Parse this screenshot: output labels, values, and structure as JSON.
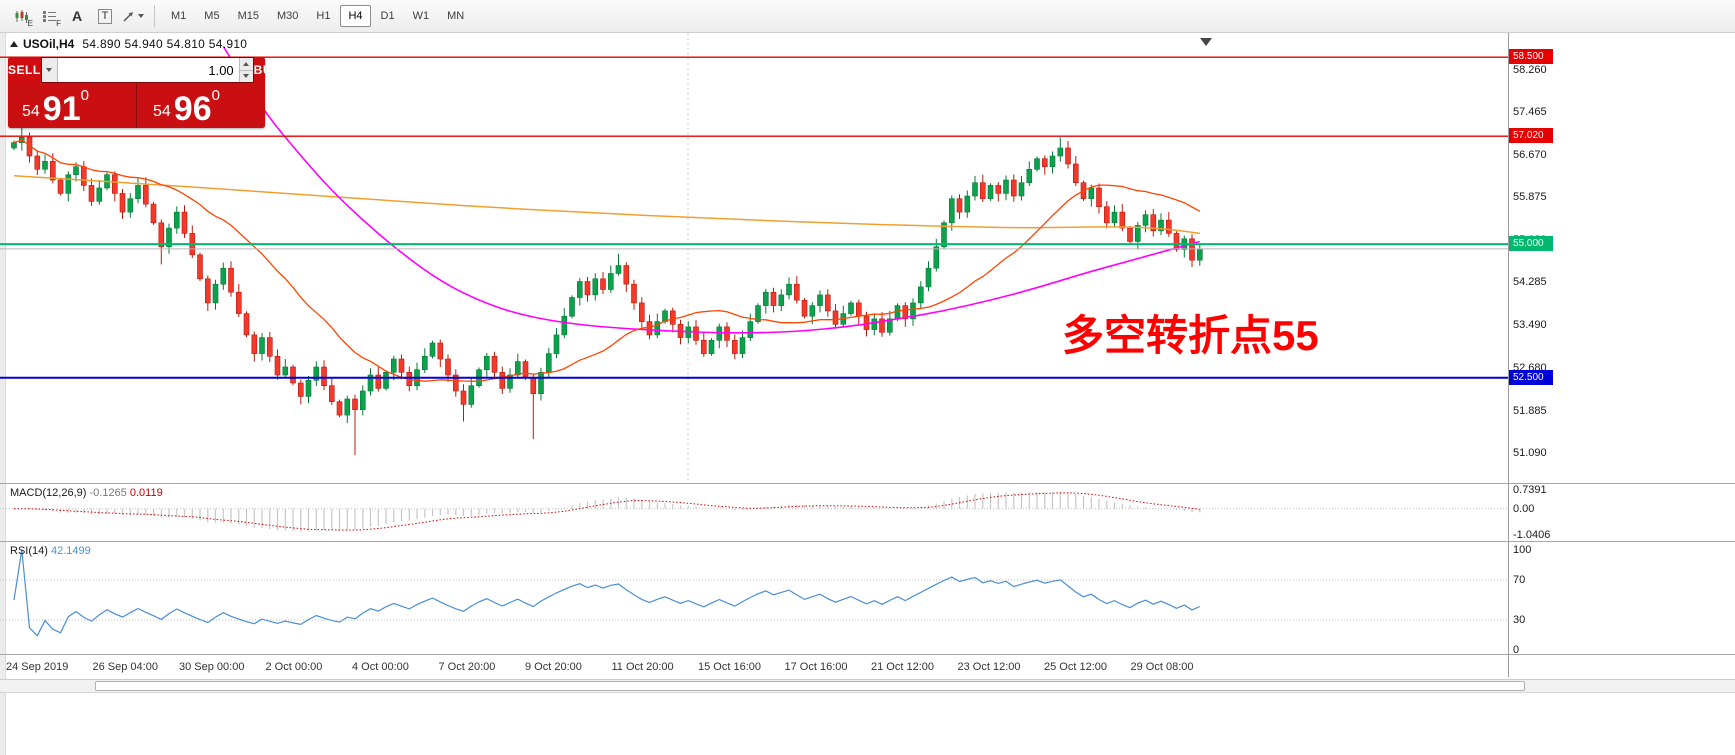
{
  "toolbar": {
    "icon_sub_e": "E",
    "icon_sub_f": "F",
    "text_tool_label": "A",
    "template_tool_label": "T",
    "timeframes": [
      {
        "label": "M1",
        "active": false
      },
      {
        "label": "M5",
        "active": false
      },
      {
        "label": "M15",
        "active": false
      },
      {
        "label": "M30",
        "active": false
      },
      {
        "label": "H1",
        "active": false
      },
      {
        "label": "H4",
        "active": true
      },
      {
        "label": "D1",
        "active": false
      },
      {
        "label": "W1",
        "active": false
      },
      {
        "label": "MN",
        "active": false
      }
    ]
  },
  "header": {
    "symbol": "USOil,H4",
    "ohlc": "54.890 54.940 54.810 54.910"
  },
  "trade_panel": {
    "sell_label": "SELL",
    "buy_label": "BUY",
    "volume": "1.00",
    "sell_small": "54",
    "sell_big": "91",
    "sell_sup": "0",
    "buy_small": "54",
    "buy_big": "96",
    "buy_sup": "0"
  },
  "annotation": {
    "text": "多空转折点55",
    "color": "#ff0000"
  },
  "macd": {
    "name": "MACD(12,26,9)",
    "value_main": "-0.1265",
    "value_signal": "0.0119"
  },
  "rsi": {
    "name": "RSI(14)",
    "value": "42.1499"
  },
  "chart_data": {
    "type": "candlestick",
    "symbol": "USOil",
    "timeframe": "H4",
    "last_quote": {
      "open": 54.89,
      "high": 54.94,
      "low": 54.81,
      "close": 54.91
    },
    "bid_price": 54.91,
    "x_labels": [
      "24 Sep 2019",
      "26 Sep 04:00",
      "30 Sep 00:00",
      "2 Oct 00:00",
      "4 Oct 00:00",
      "7 Oct 20:00",
      "9 Oct 20:00",
      "11 Oct 20:00",
      "15 Oct 16:00",
      "17 Oct 16:00",
      "21 Oct 12:00",
      "23 Oct 12:00",
      "25 Oct 12:00",
      "29 Oct 08:00"
    ],
    "price_range_labels": [
      "58.260",
      "57.465",
      "56.670",
      "55.875",
      "55.080",
      "54.285",
      "53.490",
      "52.680",
      "51.885",
      "51.090"
    ],
    "first_open": 56.8,
    "closes": [
      56.9,
      57.0,
      56.65,
      56.4,
      56.55,
      56.2,
      55.95,
      56.3,
      56.45,
      56.1,
      55.8,
      56.05,
      56.3,
      55.95,
      55.6,
      55.85,
      56.1,
      55.75,
      55.4,
      54.95,
      55.3,
      55.6,
      55.2,
      54.8,
      54.35,
      53.9,
      54.25,
      54.55,
      54.1,
      53.7,
      53.3,
      52.95,
      53.25,
      52.9,
      52.55,
      52.7,
      52.4,
      52.15,
      52.45,
      52.7,
      52.35,
      52.05,
      51.8,
      52.1,
      51.9,
      52.25,
      52.55,
      52.3,
      52.6,
      52.85,
      52.6,
      52.35,
      52.65,
      52.9,
      53.15,
      52.85,
      52.55,
      52.25,
      52.0,
      52.35,
      52.65,
      52.9,
      52.6,
      52.3,
      52.55,
      52.8,
      52.5,
      52.2,
      52.6,
      52.95,
      53.3,
      53.65,
      54.0,
      54.3,
      54.05,
      54.35,
      54.15,
      54.45,
      54.6,
      54.25,
      53.9,
      53.55,
      53.3,
      53.55,
      53.75,
      53.5,
      53.25,
      53.45,
      53.2,
      52.95,
      53.2,
      53.45,
      53.2,
      52.95,
      53.25,
      53.55,
      53.85,
      54.1,
      53.85,
      54.05,
      54.25,
      53.95,
      53.65,
      53.85,
      54.05,
      53.75,
      53.5,
      53.7,
      53.9,
      53.65,
      53.4,
      53.6,
      53.35,
      53.6,
      53.85,
      53.6,
      53.9,
      54.2,
      54.55,
      54.95,
      55.4,
      55.85,
      55.6,
      55.9,
      56.15,
      55.85,
      56.1,
      55.95,
      56.2,
      55.9,
      56.15,
      56.4,
      56.6,
      56.45,
      56.65,
      56.8,
      56.5,
      56.15,
      55.85,
      56.05,
      55.7,
      55.4,
      55.6,
      55.3,
      55.05,
      55.35,
      55.55,
      55.25,
      55.45,
      55.2,
      54.9,
      55.1,
      54.7,
      54.91
    ],
    "wick_low_overrides": {
      "19": 54.62,
      "44": 51.05,
      "58": 51.68,
      "67": 51.35
    },
    "wick_high_overrides": {
      "1": 57.22,
      "78": 54.82,
      "135": 57.0
    },
    "up_color": "#0ca24d",
    "down_color": "#f2392b",
    "levels": [
      {
        "price": 58.5,
        "label": "58.500",
        "color": "#e60000",
        "width": 1.4
      },
      {
        "price": 57.02,
        "label": "57.020",
        "color": "#e60000",
        "width": 1.4
      },
      {
        "price": 55.0,
        "label": "55.000",
        "color": "#00b96f",
        "width": 2
      },
      {
        "price": 52.5,
        "label": "52.500",
        "color": "#0000d9",
        "width": 2
      }
    ],
    "ma": {
      "fast_period": 21,
      "fast_color": "#ff4500",
      "mid_color": "#ff00ff",
      "mid_points": [
        [
          27,
          58.7
        ],
        [
          30,
          58.0
        ],
        [
          33,
          57.35
        ],
        [
          37,
          56.65
        ],
        [
          41,
          56.0
        ],
        [
          45,
          55.45
        ],
        [
          49,
          54.95
        ],
        [
          54,
          54.4
        ],
        [
          59,
          54.0
        ],
        [
          65,
          53.68
        ],
        [
          73,
          53.48
        ],
        [
          83,
          53.38
        ],
        [
          93,
          53.33
        ],
        [
          101,
          53.36
        ],
        [
          108,
          53.46
        ],
        [
          114,
          53.6
        ],
        [
          120,
          53.75
        ],
        [
          126,
          53.95
        ],
        [
          132,
          54.18
        ],
        [
          138,
          54.45
        ],
        [
          143,
          54.65
        ],
        [
          148,
          54.85
        ],
        [
          153,
          55.05
        ]
      ],
      "slow_color": "#efa030",
      "slow_points": [
        [
          0,
          56.28
        ],
        [
          15,
          56.15
        ],
        [
          30,
          56.0
        ],
        [
          45,
          55.85
        ],
        [
          60,
          55.7
        ],
        [
          75,
          55.58
        ],
        [
          90,
          55.48
        ],
        [
          105,
          55.4
        ],
        [
          120,
          55.33
        ],
        [
          132,
          55.3
        ],
        [
          141,
          55.33
        ],
        [
          148,
          55.3
        ],
        [
          153,
          55.2
        ]
      ]
    },
    "macd": {
      "fast": 12,
      "slow": 26,
      "signal": 9,
      "hist_color": "#c6c6c6",
      "signal_color": "#e00000",
      "axis": [
        "0.7391",
        "0.00",
        "-1.0406"
      ]
    },
    "rsi": {
      "period": 14,
      "color": "#4a8fd4",
      "levels": [
        70,
        30
      ],
      "axis": [
        "100",
        "70",
        "30",
        "0"
      ]
    }
  }
}
